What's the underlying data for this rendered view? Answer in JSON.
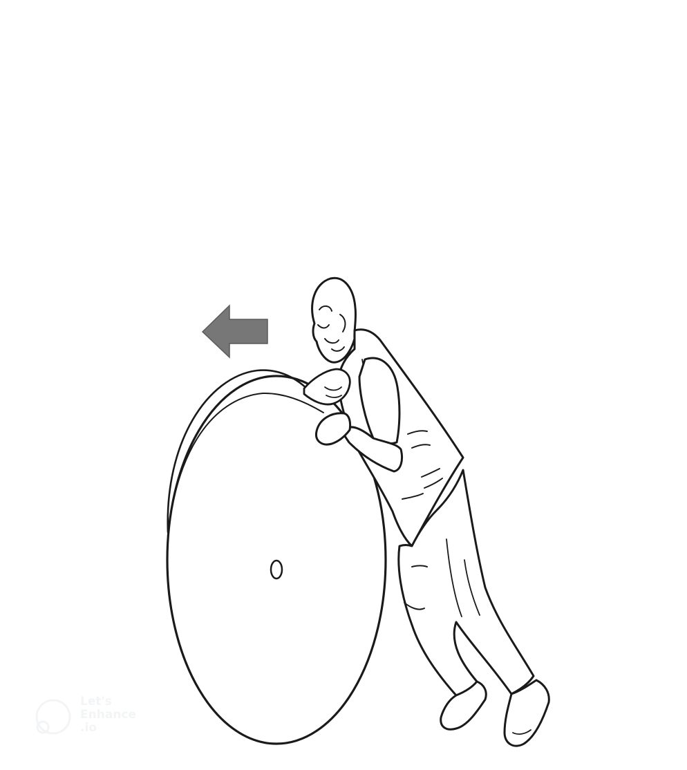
{
  "watermark": {
    "text": "Let's\nEnhance\n.io",
    "color": "#e9ecef"
  },
  "arrow": {
    "direction": "left",
    "color": "#777777"
  },
  "stroke_color": "#111111"
}
